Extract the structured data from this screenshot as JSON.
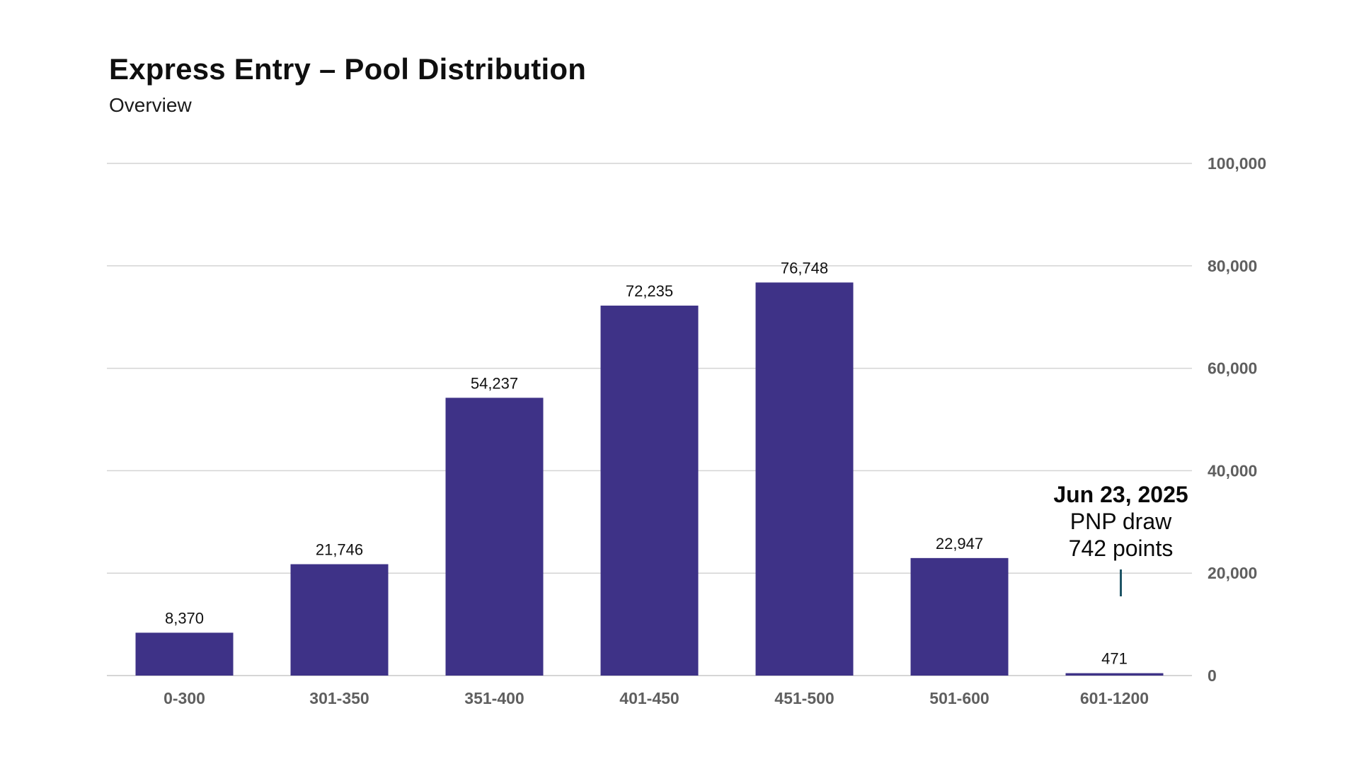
{
  "chart_data": {
    "type": "bar",
    "title": "Express Entry – Pool Distribution",
    "subtitle": "Overview",
    "categories": [
      "0-300",
      "301-350",
      "351-400",
      "401-450",
      "451-500",
      "501-600",
      "601-1200"
    ],
    "values": [
      8370,
      21746,
      54237,
      72235,
      76748,
      22947,
      471
    ],
    "data_labels": [
      "8,370",
      "21,746",
      "54,237",
      "72,235",
      "76,748",
      "22,947",
      "471"
    ],
    "ylim": [
      0,
      100000
    ],
    "yticks": [
      0,
      20000,
      40000,
      60000,
      80000,
      100000
    ],
    "ytick_labels": [
      "0",
      "20,000",
      "40,000",
      "60,000",
      "80,000",
      "100,000"
    ],
    "y_axis_side": "right",
    "grid": true,
    "bar_color": "#3e3287",
    "annotation": {
      "category": "601-1200",
      "date": "Jun 23, 2025",
      "line1": "PNP draw",
      "line2": "742 points",
      "marker_color": "#1f5566"
    }
  }
}
